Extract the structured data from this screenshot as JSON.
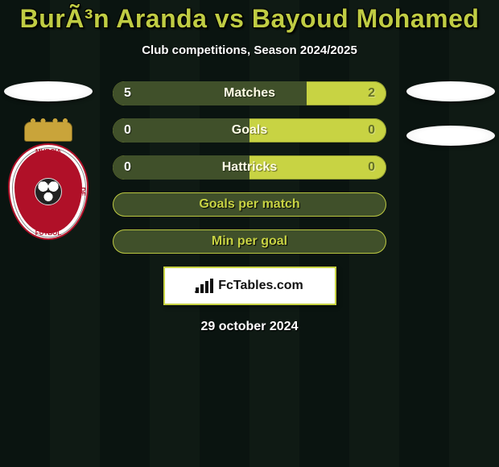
{
  "title": "BurÃ³n Aranda vs Bayoud Mohamed",
  "subtitle": "Club competitions, Season 2024/2025",
  "date": "29 october 2024",
  "brand": "FcTables.com",
  "shield": {
    "top": "MURCIA",
    "left": "CLUB",
    "right": "DE",
    "bottom": "FUTBOL"
  },
  "colors": {
    "bar_dark": "#40502a",
    "bar_light": "#c8d343",
    "title_color": "#c0cc43",
    "bg_stripe_a": "#0a1410",
    "bg_stripe_b": "#0f1a14"
  },
  "rows": [
    {
      "label": "Matches",
      "left": "5",
      "right": "2",
      "left_pct": 71,
      "style": "split"
    },
    {
      "label": "Goals",
      "left": "0",
      "right": "0",
      "left_pct": 50,
      "style": "split"
    },
    {
      "label": "Hattricks",
      "left": "0",
      "right": "0",
      "left_pct": 50,
      "style": "split"
    },
    {
      "label": "Goals per match",
      "left": "",
      "right": "",
      "left_pct": 100,
      "style": "green"
    },
    {
      "label": "Min per goal",
      "left": "",
      "right": "",
      "left_pct": 100,
      "style": "green"
    }
  ]
}
